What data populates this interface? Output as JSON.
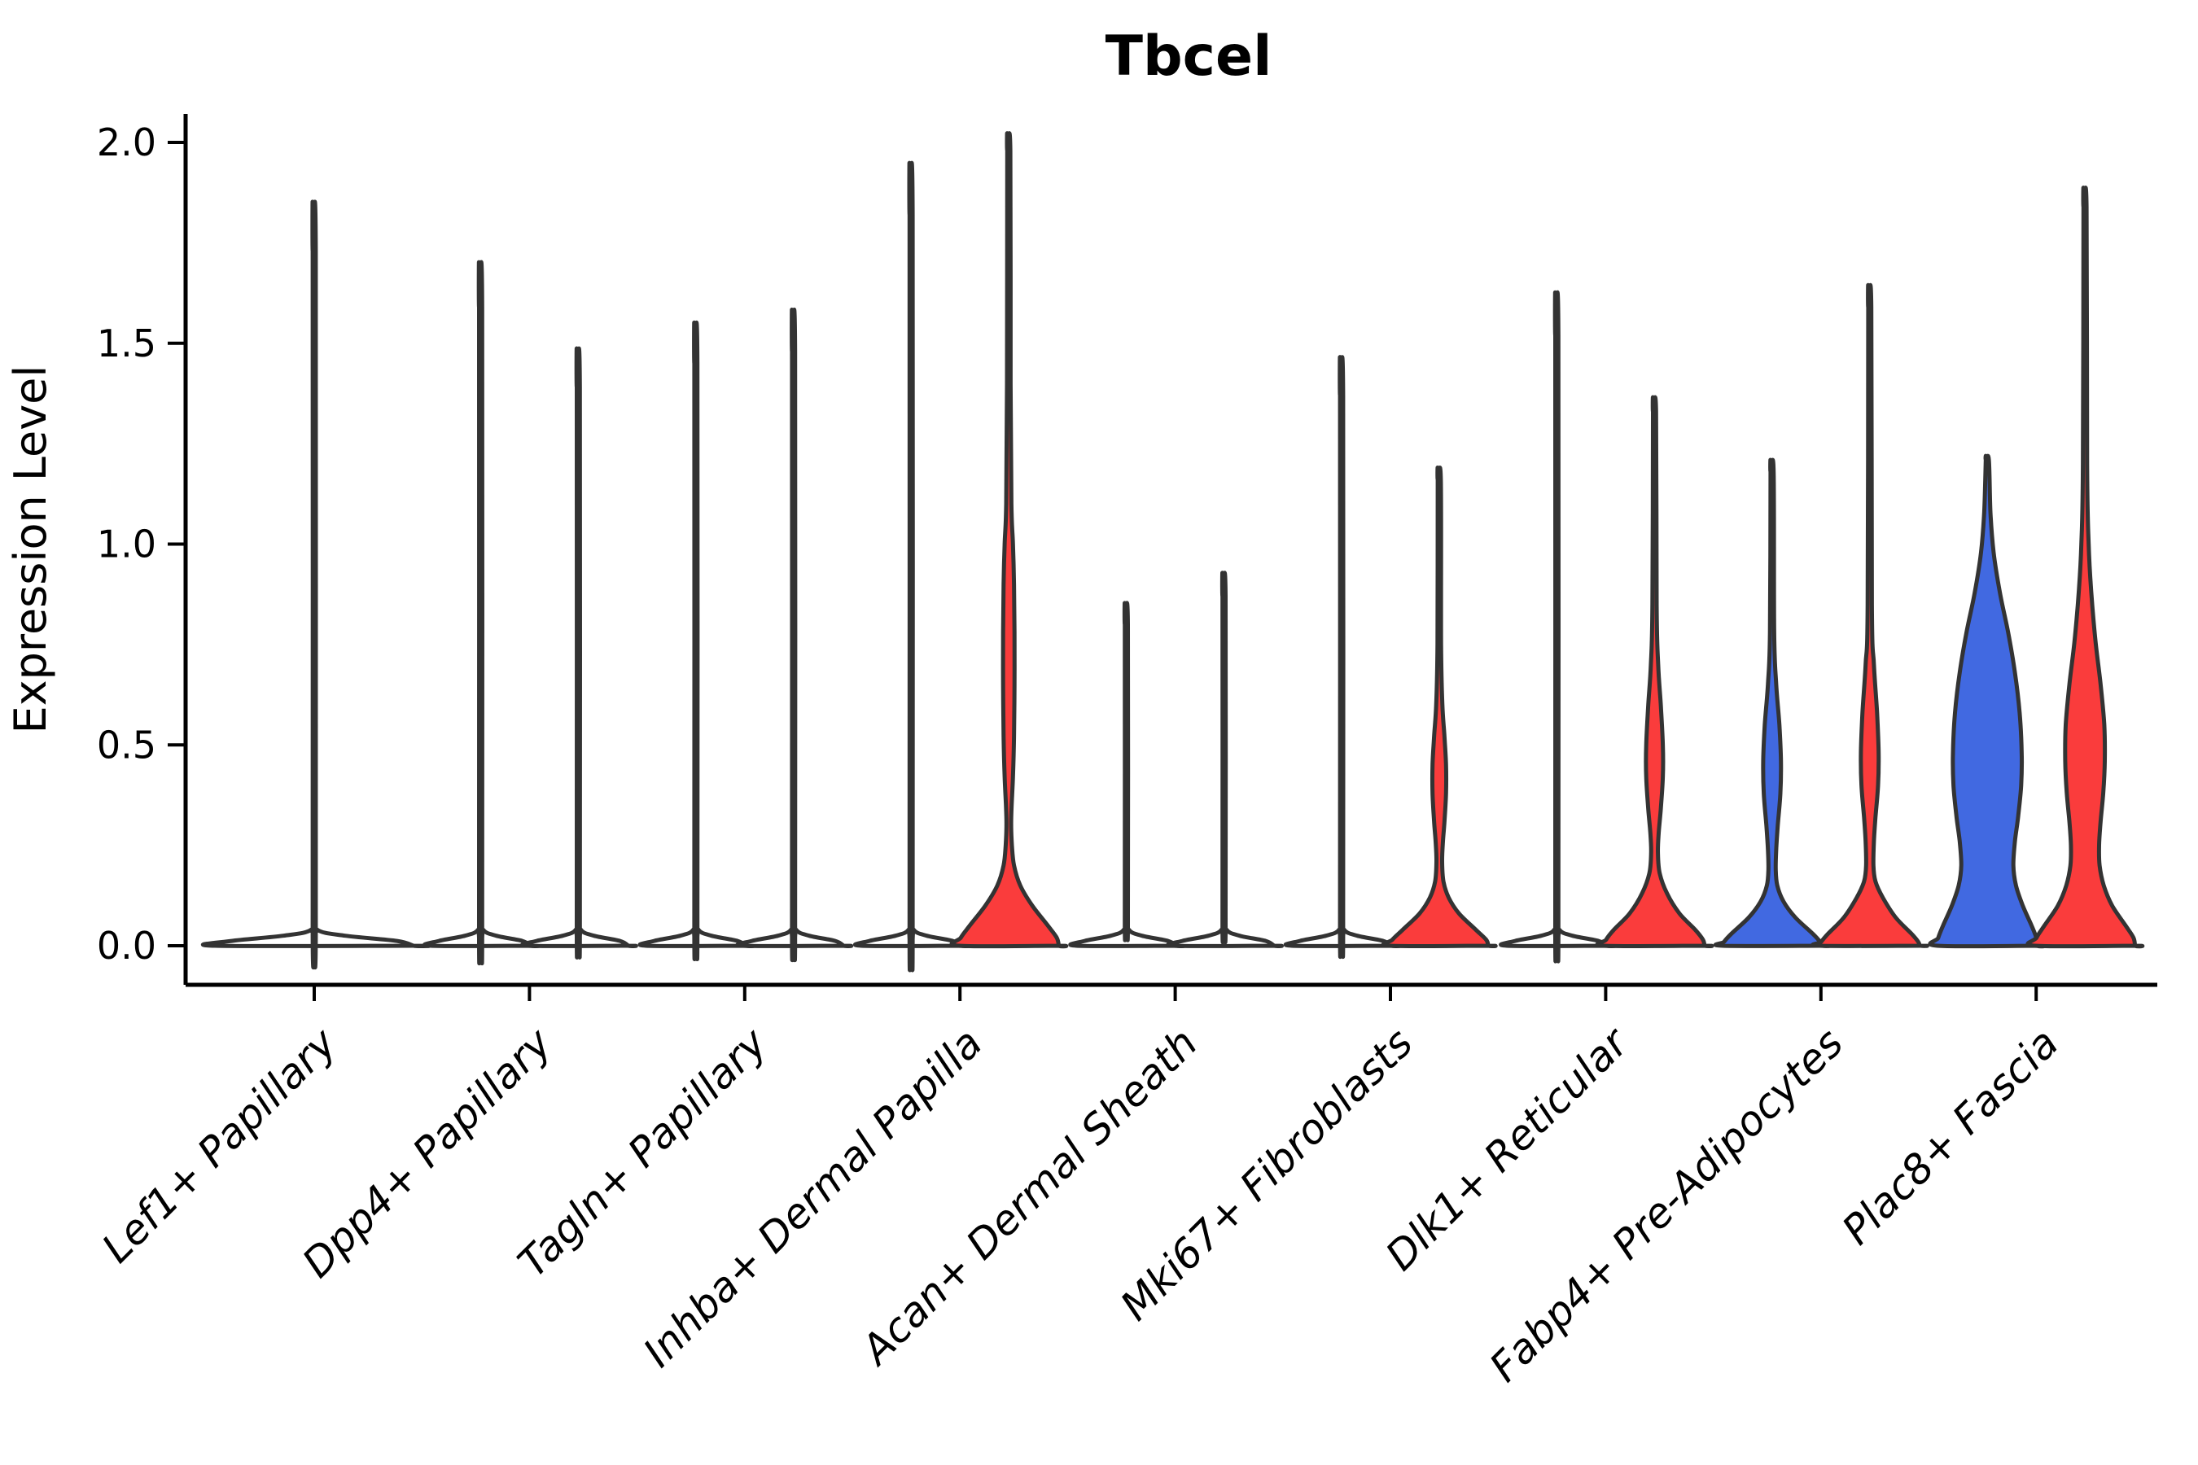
{
  "chart_data": {
    "type": "violin",
    "title": "Tbcel",
    "xlabel": "",
    "ylabel": "Expression Level",
    "ylim": [
      0,
      2.05
    ],
    "ytick_labels": [
      "0.0",
      "0.5",
      "1.0",
      "1.5",
      "2.0"
    ],
    "ytick_values": [
      0.0,
      0.5,
      1.0,
      1.5,
      2.0
    ],
    "grid": "off",
    "legend": "none",
    "x_tick_rotation_deg": 45,
    "categories": [
      "Lef1+ Papillary",
      "Dpp4+ Papillary",
      "Tagln+ Papillary",
      "Inhba+ Dermal Papilla",
      "Acan+ Dermal Sheath",
      "Mki67+ Fibroblasts",
      "Dlk1+ Reticular",
      "Fabp4+ Pre-Adipocytes",
      "Plac8+ Fascia"
    ],
    "colors": {
      "blue": "#4169E1",
      "red": "#FA3C3C",
      "plain": "#ffffff",
      "outline": "#333333",
      "axis": "#000000"
    },
    "violins": [
      {
        "category_index": 0,
        "offset": 0,
        "half_slot": 127,
        "fill": "plain",
        "max_expression": 1.73,
        "profile": [
          [
            1.73,
            0.015
          ],
          [
            0.08,
            0.015
          ],
          [
            0.04,
            0.03
          ],
          [
            0.025,
            0.3
          ],
          [
            0.012,
            0.8
          ],
          [
            0,
            0.96
          ]
        ]
      },
      {
        "category_index": 1,
        "offset": -60,
        "half_slot": 64,
        "fill": "plain",
        "max_expression": 1.59,
        "profile": [
          [
            1.59,
            0.03
          ],
          [
            0.08,
            0.03
          ],
          [
            0.04,
            0.05
          ],
          [
            0.025,
            0.3
          ],
          [
            0.012,
            0.8
          ],
          [
            0,
            0.96
          ]
        ]
      },
      {
        "category_index": 1,
        "offset": 60,
        "half_slot": 64,
        "fill": "plain",
        "max_expression": 1.39,
        "profile": [
          [
            1.39,
            0.03
          ],
          [
            0.08,
            0.03
          ],
          [
            0.04,
            0.05
          ],
          [
            0.025,
            0.3
          ],
          [
            0.012,
            0.8
          ],
          [
            0,
            0.96
          ]
        ]
      },
      {
        "category_index": 2,
        "offset": -60,
        "half_slot": 64,
        "fill": "plain",
        "max_expression": 1.45,
        "profile": [
          [
            1.45,
            0.03
          ],
          [
            0.08,
            0.03
          ],
          [
            0.04,
            0.05
          ],
          [
            0.025,
            0.3
          ],
          [
            0.012,
            0.8
          ],
          [
            0,
            0.96
          ]
        ]
      },
      {
        "category_index": 2,
        "offset": 60,
        "half_slot": 64,
        "fill": "plain",
        "max_expression": 1.48,
        "profile": [
          [
            1.48,
            0.03
          ],
          [
            0.08,
            0.03
          ],
          [
            0.04,
            0.05
          ],
          [
            0.025,
            0.3
          ],
          [
            0.012,
            0.8
          ],
          [
            0,
            0.96
          ]
        ]
      },
      {
        "category_index": 3,
        "offset": -60,
        "half_slot": 64,
        "fill": "plain",
        "max_expression": 1.82,
        "profile": [
          [
            1.82,
            0.03
          ],
          [
            0.08,
            0.03
          ],
          [
            0.04,
            0.05
          ],
          [
            0.025,
            0.3
          ],
          [
            0.012,
            0.8
          ],
          [
            0,
            0.96
          ]
        ]
      },
      {
        "category_index": 3,
        "offset": 60,
        "half_slot": 64,
        "fill": "red",
        "max_expression": 1.98,
        "profile": [
          [
            1.98,
            0.03
          ],
          [
            1.4,
            0.035
          ],
          [
            1.1,
            0.05
          ],
          [
            1.0,
            0.08
          ],
          [
            0.9,
            0.1
          ],
          [
            0.78,
            0.11
          ],
          [
            0.65,
            0.11
          ],
          [
            0.52,
            0.1
          ],
          [
            0.42,
            0.08
          ],
          [
            0.35,
            0.055
          ],
          [
            0.3,
            0.045
          ],
          [
            0.25,
            0.06
          ],
          [
            0.2,
            0.1
          ],
          [
            0.15,
            0.22
          ],
          [
            0.1,
            0.45
          ],
          [
            0.05,
            0.75
          ],
          [
            0.02,
            0.92
          ],
          [
            0,
            0.96
          ]
        ]
      },
      {
        "category_index": 4,
        "offset": -60,
        "half_slot": 64,
        "fill": "plain",
        "max_expression": 0.8,
        "profile": [
          [
            0.8,
            0.03
          ],
          [
            0.08,
            0.03
          ],
          [
            0.04,
            0.05
          ],
          [
            0.025,
            0.3
          ],
          [
            0.012,
            0.8
          ],
          [
            0,
            0.96
          ]
        ]
      },
      {
        "category_index": 4,
        "offset": 60,
        "half_slot": 64,
        "fill": "plain",
        "max_expression": 0.87,
        "profile": [
          [
            0.87,
            0.03
          ],
          [
            0.08,
            0.03
          ],
          [
            0.04,
            0.05
          ],
          [
            0.025,
            0.3
          ],
          [
            0.012,
            0.8
          ],
          [
            0,
            0.96
          ]
        ]
      },
      {
        "category_index": 5,
        "offset": -60,
        "half_slot": 64,
        "fill": "plain",
        "max_expression": 1.37,
        "profile": [
          [
            1.37,
            0.03
          ],
          [
            0.08,
            0.03
          ],
          [
            0.04,
            0.05
          ],
          [
            0.025,
            0.3
          ],
          [
            0.012,
            0.8
          ],
          [
            0,
            0.96
          ]
        ]
      },
      {
        "category_index": 5,
        "offset": 60,
        "half_slot": 64,
        "fill": "red",
        "max_expression": 1.16,
        "profile": [
          [
            1.16,
            0.03
          ],
          [
            0.75,
            0.035
          ],
          [
            0.6,
            0.06
          ],
          [
            0.52,
            0.1
          ],
          [
            0.45,
            0.13
          ],
          [
            0.38,
            0.13
          ],
          [
            0.31,
            0.1
          ],
          [
            0.26,
            0.07
          ],
          [
            0.21,
            0.055
          ],
          [
            0.16,
            0.08
          ],
          [
            0.12,
            0.18
          ],
          [
            0.08,
            0.38
          ],
          [
            0.04,
            0.7
          ],
          [
            0.015,
            0.9
          ],
          [
            0,
            0.94
          ]
        ]
      },
      {
        "category_index": 6,
        "offset": -60,
        "half_slot": 64,
        "fill": "plain",
        "max_expression": 1.52,
        "profile": [
          [
            1.52,
            0.03
          ],
          [
            0.08,
            0.03
          ],
          [
            0.04,
            0.05
          ],
          [
            0.025,
            0.3
          ],
          [
            0.012,
            0.8
          ],
          [
            0,
            0.96
          ]
        ]
      },
      {
        "category_index": 6,
        "offset": 60,
        "half_slot": 64,
        "fill": "red",
        "max_expression": 1.33,
        "profile": [
          [
            1.33,
            0.03
          ],
          [
            0.85,
            0.04
          ],
          [
            0.7,
            0.07
          ],
          [
            0.6,
            0.12
          ],
          [
            0.5,
            0.16
          ],
          [
            0.42,
            0.16
          ],
          [
            0.34,
            0.12
          ],
          [
            0.28,
            0.08
          ],
          [
            0.23,
            0.065
          ],
          [
            0.18,
            0.1
          ],
          [
            0.13,
            0.24
          ],
          [
            0.08,
            0.48
          ],
          [
            0.04,
            0.78
          ],
          [
            0.015,
            0.93
          ],
          [
            0,
            0.96
          ]
        ]
      },
      {
        "category_index": 7,
        "offset": -60,
        "half_slot": 64,
        "fill": "blue",
        "max_expression": 1.18,
        "profile": [
          [
            1.18,
            0.03
          ],
          [
            0.78,
            0.04
          ],
          [
            0.65,
            0.08
          ],
          [
            0.55,
            0.14
          ],
          [
            0.46,
            0.17
          ],
          [
            0.38,
            0.16
          ],
          [
            0.3,
            0.11
          ],
          [
            0.24,
            0.08
          ],
          [
            0.19,
            0.07
          ],
          [
            0.15,
            0.1
          ],
          [
            0.11,
            0.22
          ],
          [
            0.07,
            0.45
          ],
          [
            0.03,
            0.78
          ],
          [
            0.01,
            0.92
          ],
          [
            0,
            0.95
          ]
        ]
      },
      {
        "category_index": 7,
        "offset": 60,
        "half_slot": 64,
        "fill": "red",
        "max_expression": 1.59,
        "profile": [
          [
            1.59,
            0.03
          ],
          [
            0.85,
            0.04
          ],
          [
            0.7,
            0.08
          ],
          [
            0.58,
            0.14
          ],
          [
            0.48,
            0.17
          ],
          [
            0.4,
            0.16
          ],
          [
            0.32,
            0.11
          ],
          [
            0.26,
            0.08
          ],
          [
            0.2,
            0.07
          ],
          [
            0.16,
            0.11
          ],
          [
            0.12,
            0.25
          ],
          [
            0.07,
            0.5
          ],
          [
            0.03,
            0.8
          ],
          [
            0.01,
            0.93
          ],
          [
            0,
            0.96
          ]
        ]
      },
      {
        "category_index": 8,
        "offset": -60,
        "half_slot": 64,
        "fill": "blue",
        "max_expression": 1.21,
        "profile": [
          [
            1.21,
            0.03
          ],
          [
            1.08,
            0.06
          ],
          [
            0.98,
            0.12
          ],
          [
            0.88,
            0.24
          ],
          [
            0.78,
            0.4
          ],
          [
            0.68,
            0.53
          ],
          [
            0.58,
            0.62
          ],
          [
            0.48,
            0.66
          ],
          [
            0.4,
            0.65
          ],
          [
            0.32,
            0.59
          ],
          [
            0.26,
            0.53
          ],
          [
            0.2,
            0.5
          ],
          [
            0.15,
            0.55
          ],
          [
            0.1,
            0.68
          ],
          [
            0.05,
            0.85
          ],
          [
            0.02,
            0.94
          ],
          [
            0,
            0.96
          ]
        ]
      },
      {
        "category_index": 8,
        "offset": 60,
        "half_slot": 64,
        "fill": "red",
        "max_expression": 1.84,
        "profile": [
          [
            1.84,
            0.03
          ],
          [
            1.2,
            0.04
          ],
          [
            1.0,
            0.07
          ],
          [
            0.88,
            0.12
          ],
          [
            0.76,
            0.2
          ],
          [
            0.65,
            0.3
          ],
          [
            0.55,
            0.37
          ],
          [
            0.46,
            0.38
          ],
          [
            0.38,
            0.35
          ],
          [
            0.31,
            0.3
          ],
          [
            0.25,
            0.27
          ],
          [
            0.2,
            0.28
          ],
          [
            0.15,
            0.36
          ],
          [
            0.1,
            0.52
          ],
          [
            0.05,
            0.78
          ],
          [
            0.02,
            0.93
          ],
          [
            0,
            0.96
          ]
        ]
      }
    ]
  }
}
